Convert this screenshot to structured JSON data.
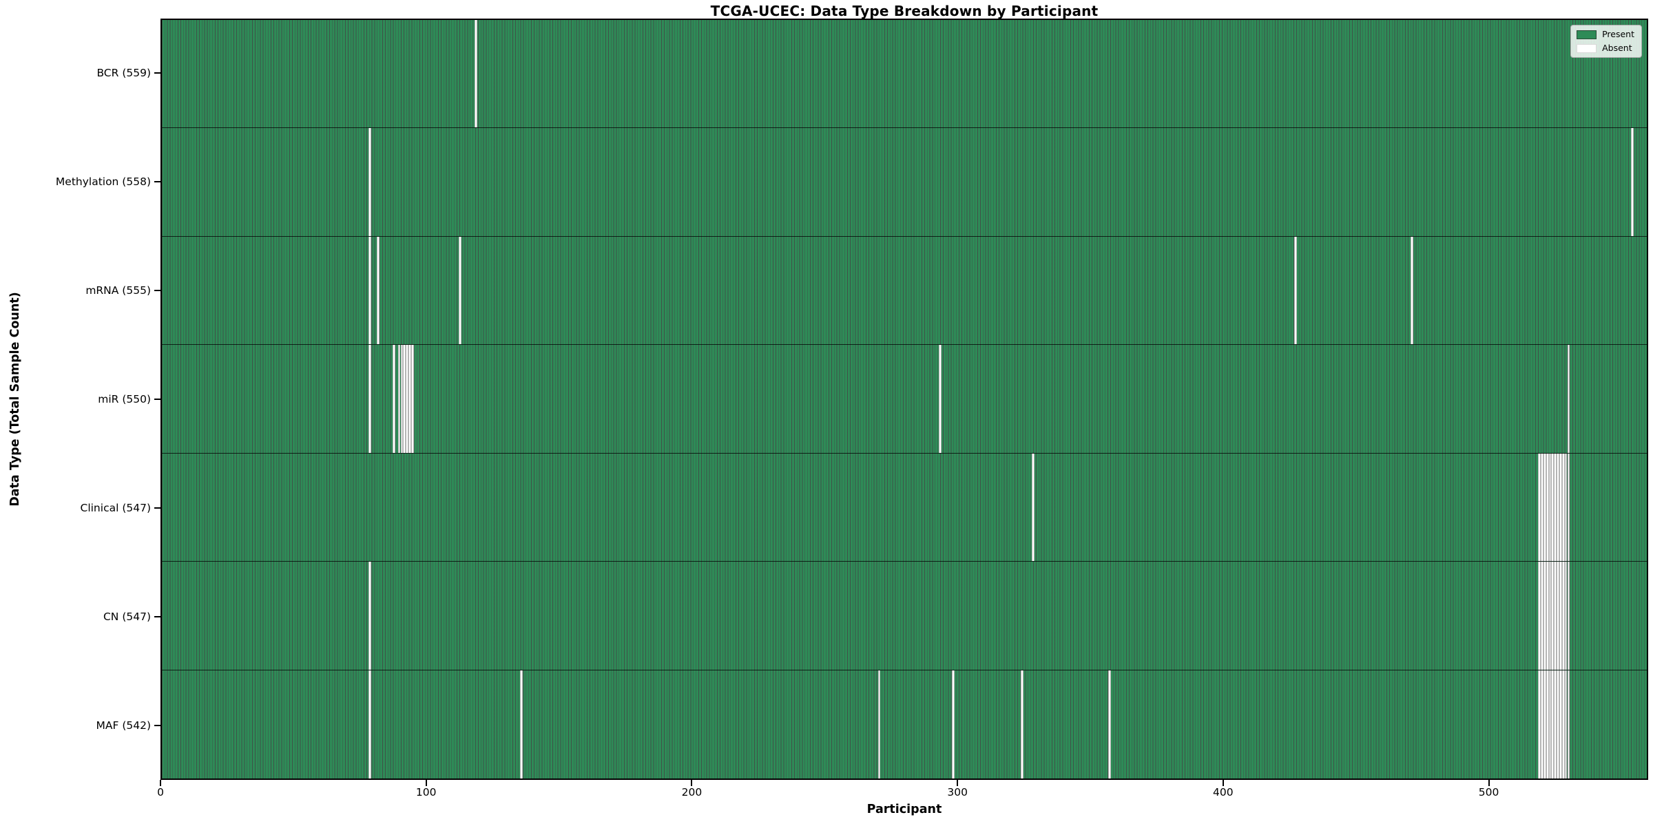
{
  "chart_data": {
    "type": "heatmap",
    "title": "TCGA-UCEC: Data Type Breakdown by Participant",
    "xlabel": "Participant",
    "ylabel": "Data Type (Total Sample Count)",
    "xlim": [
      0,
      560
    ],
    "x_ticks": [
      0,
      100,
      200,
      300,
      400,
      500
    ],
    "n_participants": 560,
    "grid": false,
    "legend": {
      "position": "upper right",
      "entries": [
        {
          "label": "Present",
          "color": "#2e8b57"
        },
        {
          "label": "Absent",
          "color": "#ffffff"
        }
      ]
    },
    "rows": [
      {
        "label": "BCR (559)",
        "data_type": "BCR",
        "present_count": 559,
        "absent_participants": [
          118
        ]
      },
      {
        "label": "Methylation (558)",
        "data_type": "Methylation",
        "present_count": 558,
        "absent_participants": [
          78,
          554
        ]
      },
      {
        "label": "mRNA (555)",
        "data_type": "mRNA",
        "present_count": 555,
        "absent_participants": [
          78,
          81,
          112,
          427,
          471
        ]
      },
      {
        "label": "miR (550)",
        "data_type": "miR",
        "present_count": 550,
        "absent_participants": [
          78,
          87,
          89,
          90,
          91,
          92,
          93,
          94,
          293,
          530
        ]
      },
      {
        "label": "Clinical (547)",
        "data_type": "Clinical",
        "present_count": 547,
        "absent_participants": [
          328,
          519,
          520,
          521,
          522,
          523,
          524,
          525,
          526,
          527,
          528,
          529,
          530
        ]
      },
      {
        "label": "CN (547)",
        "data_type": "CN",
        "present_count": 547,
        "absent_participants": [
          78,
          519,
          520,
          521,
          522,
          523,
          524,
          525,
          526,
          527,
          528,
          529,
          530
        ]
      },
      {
        "label": "MAF (542)",
        "data_type": "MAF",
        "present_count": 542,
        "absent_participants": [
          78,
          135,
          270,
          298,
          324,
          357,
          519,
          520,
          521,
          522,
          523,
          524,
          525,
          526,
          527,
          528,
          529,
          530
        ]
      }
    ]
  },
  "colors": {
    "present": "#2e8b57",
    "absent": "#ffffff",
    "bar_edge": "#0f261a",
    "background": "#ffffff",
    "text": "#000000"
  }
}
